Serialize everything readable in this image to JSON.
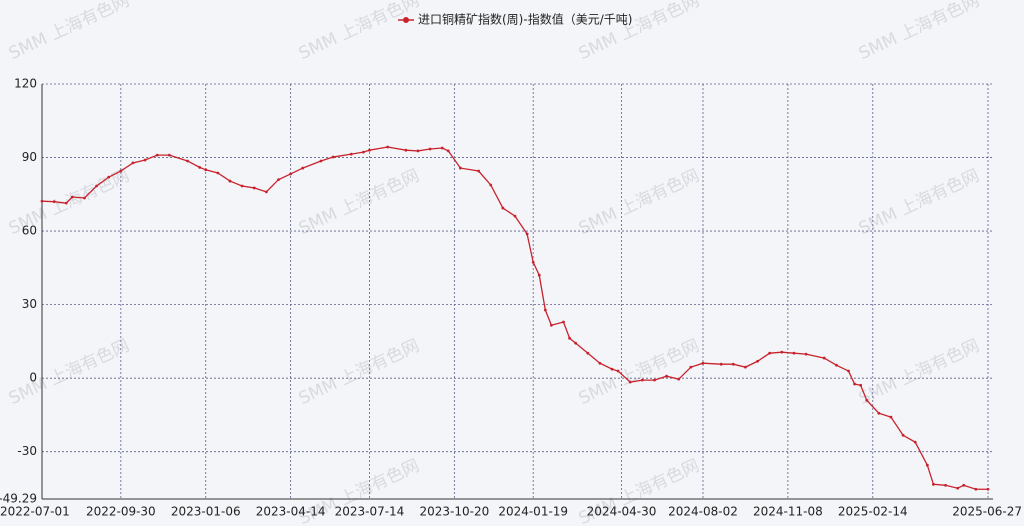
{
  "chart_data": {
    "type": "line",
    "watermark": "SMM 上海有色网",
    "x": [
      "2022-07-01",
      "2022-07-15",
      "2022-07-29",
      "2022-08-05",
      "2022-08-19",
      "2022-09-02",
      "2022-09-16",
      "2022-09-30",
      "2022-10-14",
      "2022-10-28",
      "2022-11-11",
      "2022-11-25",
      "2022-12-16",
      "2022-12-30",
      "2023-01-06",
      "2023-01-20",
      "2023-02-03",
      "2023-02-17",
      "2023-03-03",
      "2023-03-17",
      "2023-03-31",
      "2023-04-14",
      "2023-04-28",
      "2023-05-19",
      "2023-06-02",
      "2023-06-23",
      "2023-07-07",
      "2023-07-14",
      "2023-08-04",
      "2023-08-25",
      "2023-09-08",
      "2023-09-22",
      "2023-10-06",
      "2023-10-13",
      "2023-10-27",
      "2023-11-17",
      "2023-12-01",
      "2023-12-15",
      "2023-12-29",
      "2024-01-12",
      "2024-01-19",
      "2024-01-26",
      "2024-02-02",
      "2024-02-09",
      "2024-02-23",
      "2024-03-01",
      "2024-03-08",
      "2024-03-22",
      "2024-04-05",
      "2024-04-19",
      "2024-04-26",
      "2024-05-10",
      "2024-05-24",
      "2024-06-07",
      "2024-06-21",
      "2024-07-05",
      "2024-07-19",
      "2024-08-02",
      "2024-08-23",
      "2024-09-06",
      "2024-09-20",
      "2024-10-04",
      "2024-10-18",
      "2024-11-01",
      "2024-11-15",
      "2024-11-29",
      "2024-12-20",
      "2025-01-03",
      "2025-01-17",
      "2025-01-24",
      "2025-01-31",
      "2025-02-07",
      "2025-02-21",
      "2025-03-07",
      "2025-03-21",
      "2025-04-04",
      "2025-04-18",
      "2025-04-25",
      "2025-05-09",
      "2025-05-23",
      "2025-05-30",
      "2025-06-13",
      "2025-06-27"
    ],
    "series": [
      {
        "name": "进口铜精矿指数(周)-指数值（美元/千吨)",
        "color": "#c8232c",
        "values": [
          72.2,
          72.0,
          71.4,
          73.9,
          73.5,
          78.4,
          82.0,
          84.5,
          87.8,
          89.0,
          91.0,
          91.0,
          88.6,
          86.0,
          85.0,
          83.7,
          80.4,
          78.4,
          77.6,
          76.0,
          81.0,
          83.3,
          85.7,
          88.6,
          90.2,
          91.4,
          92.2,
          93.0,
          94.3,
          93.0,
          92.7,
          93.5,
          93.9,
          92.7,
          85.7,
          84.5,
          78.8,
          69.4,
          66.1,
          58.8,
          47.3,
          42.0,
          27.8,
          21.6,
          22.9,
          16.3,
          14.3,
          10.2,
          6.1,
          3.7,
          2.9,
          -1.6,
          -0.8,
          -0.8,
          0.8,
          -0.4,
          4.5,
          6.1,
          5.7,
          5.7,
          4.5,
          6.9,
          10.2,
          10.6,
          10.2,
          9.8,
          8.2,
          5.3,
          2.9,
          -2.4,
          -2.9,
          -9.0,
          -14.3,
          -15.9,
          -23.3,
          -26.1,
          -35.5,
          -43.3,
          -43.7,
          -44.9,
          -43.7,
          -45.3,
          -45.3
        ]
      }
    ],
    "xlim": [
      "2022-07-01",
      "2025-06-27"
    ],
    "xticks": [
      "2022-07-01",
      "2022-09-30",
      "2023-01-06",
      "2023-04-14",
      "2023-07-14",
      "2023-10-20",
      "2024-01-19",
      "2024-04-30",
      "2024-08-02",
      "2024-11-08",
      "2025-02-14",
      "2025-06-27"
    ],
    "ylim": [
      -49.29,
      120
    ],
    "yticks": [
      -49.29,
      -30,
      0,
      30,
      60,
      90,
      120
    ],
    "grid": true
  }
}
